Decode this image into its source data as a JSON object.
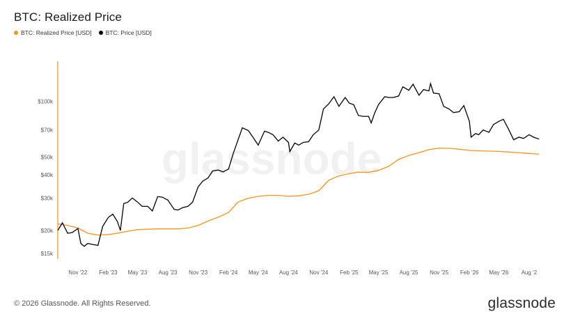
{
  "header": {
    "title": "BTC: Realized Price"
  },
  "watermark": "glassnode",
  "footer": {
    "copyright": "© 2026 Glassnode. All Rights Reserved.",
    "logo": "glassnode"
  },
  "colors": {
    "realized": "#f7931a",
    "price": "#000000",
    "axis": "#f7931a"
  },
  "chart_data": {
    "type": "line",
    "title": "BTC: Realized Price",
    "xlabel": "",
    "ylabel": "",
    "y_scale": "log",
    "ylim": [
      14000,
      165000
    ],
    "xlim": [
      "2022-09-01",
      "2026-08-31"
    ],
    "y_ticks": [
      15000,
      20000,
      30000,
      40000,
      50000,
      70000,
      100000
    ],
    "y_tick_labels": [
      "$15k",
      "$20k",
      "$30k",
      "$40k",
      "$50k",
      "$70k",
      "$100k"
    ],
    "x_ticks": [
      "2022-11-01",
      "2023-02-01",
      "2023-05-01",
      "2023-08-01",
      "2023-11-01",
      "2024-02-01",
      "2024-05-01",
      "2024-08-01",
      "2024-11-01",
      "2025-02-01",
      "2025-05-01",
      "2025-08-01",
      "2025-11-01",
      "2026-02-01",
      "2026-05-01",
      "2026-08-01"
    ],
    "x_tick_labels": [
      "Nov '22",
      "Feb '23",
      "May '23",
      "Aug '23",
      "Nov '23",
      "Feb '24",
      "May '24",
      "Aug '24",
      "Nov '24",
      "Feb '25",
      "May '25",
      "Aug '25",
      "Nov '25",
      "Feb '26",
      "May '26",
      "Aug '2"
    ],
    "legend": "top-left",
    "grid": false,
    "series": [
      {
        "name": "BTC: Realized Price [USD]",
        "color": "#f7931a",
        "x": [
          "2022-09-01",
          "2022-10-01",
          "2022-11-01",
          "2022-12-01",
          "2023-01-01",
          "2023-02-01",
          "2023-03-01",
          "2023-04-01",
          "2023-05-01",
          "2023-06-01",
          "2023-07-01",
          "2023-08-01",
          "2023-09-01",
          "2023-10-01",
          "2023-11-01",
          "2023-12-01",
          "2024-01-01",
          "2024-02-01",
          "2024-03-01",
          "2024-04-01",
          "2024-05-01",
          "2024-06-01",
          "2024-07-01",
          "2024-08-01",
          "2024-09-01",
          "2024-10-01",
          "2024-11-01",
          "2024-12-01",
          "2025-01-01",
          "2025-02-01",
          "2025-03-01",
          "2025-04-01",
          "2025-05-01",
          "2025-06-01",
          "2025-07-01",
          "2025-08-01",
          "2025-09-01",
          "2025-10-01",
          "2025-11-01",
          "2025-12-01",
          "2026-01-01",
          "2026-02-01",
          "2026-03-01",
          "2026-04-01",
          "2026-05-01",
          "2026-06-01",
          "2026-07-01",
          "2026-08-01",
          "2026-08-31"
        ],
        "y": [
          21700,
          21300,
          20600,
          19300,
          18900,
          19000,
          19300,
          19800,
          20200,
          20300,
          20400,
          20400,
          20400,
          20600,
          21300,
          22500,
          23600,
          25000,
          28500,
          29900,
          30600,
          31000,
          31000,
          30600,
          30800,
          31400,
          32800,
          37400,
          39500,
          40600,
          41400,
          41300,
          42300,
          44500,
          48500,
          51000,
          52800,
          54800,
          55800,
          55700,
          55100,
          54300,
          54000,
          53800,
          53600,
          53200,
          52700,
          52300,
          51800
        ]
      },
      {
        "name": "BTC: Price [USD]",
        "color": "#000000",
        "x": [
          "2022-09-01",
          "2022-09-15",
          "2022-10-01",
          "2022-10-15",
          "2022-11-01",
          "2022-11-10",
          "2022-11-20",
          "2022-12-01",
          "2022-12-15",
          "2023-01-01",
          "2023-01-15",
          "2023-02-01",
          "2023-02-15",
          "2023-03-01",
          "2023-03-10",
          "2023-03-20",
          "2023-04-01",
          "2023-04-15",
          "2023-05-01",
          "2023-05-15",
          "2023-06-01",
          "2023-06-15",
          "2023-07-01",
          "2023-07-15",
          "2023-08-01",
          "2023-08-20",
          "2023-09-01",
          "2023-09-15",
          "2023-10-01",
          "2023-10-15",
          "2023-11-01",
          "2023-11-15",
          "2023-12-01",
          "2023-12-15",
          "2024-01-01",
          "2024-01-15",
          "2024-02-01",
          "2024-02-15",
          "2024-03-01",
          "2024-03-14",
          "2024-04-01",
          "2024-04-15",
          "2024-05-01",
          "2024-05-20",
          "2024-06-01",
          "2024-06-15",
          "2024-07-01",
          "2024-07-15",
          "2024-08-01",
          "2024-08-05",
          "2024-08-20",
          "2024-09-01",
          "2024-09-15",
          "2024-10-01",
          "2024-10-15",
          "2024-11-01",
          "2024-11-15",
          "2024-12-01",
          "2024-12-17",
          "2025-01-01",
          "2025-01-20",
          "2025-02-01",
          "2025-02-15",
          "2025-03-01",
          "2025-03-15",
          "2025-04-01",
          "2025-04-09",
          "2025-04-20",
          "2025-05-01",
          "2025-05-20",
          "2025-06-01",
          "2025-06-15",
          "2025-07-01",
          "2025-07-14",
          "2025-08-01",
          "2025-08-14",
          "2025-09-01",
          "2025-09-15",
          "2025-10-01",
          "2025-10-06",
          "2025-10-15",
          "2025-11-01",
          "2025-11-15",
          "2025-12-01",
          "2025-12-15",
          "2026-01-01",
          "2026-01-15",
          "2026-02-01",
          "2026-02-06",
          "2026-02-20",
          "2026-03-01",
          "2026-03-15",
          "2026-04-01",
          "2026-04-15",
          "2026-05-01",
          "2026-05-15",
          "2026-06-01",
          "2026-06-15",
          "2026-07-01",
          "2026-07-15",
          "2026-08-01",
          "2026-08-15",
          "2026-08-31"
        ],
        "y": [
          20000,
          22000,
          19300,
          19500,
          20500,
          17000,
          16400,
          17000,
          16800,
          16600,
          21000,
          23500,
          24500,
          22300,
          20000,
          28000,
          28400,
          30000,
          28500,
          27000,
          27000,
          25500,
          30500,
          30300,
          29200,
          26000,
          25800,
          26600,
          27000,
          28500,
          34500,
          37000,
          38500,
          42000,
          42500,
          41500,
          43000,
          52000,
          62000,
          72000,
          69500,
          64000,
          58000,
          69000,
          68000,
          66000,
          61000,
          64000,
          60000,
          53500,
          59500,
          58000,
          60000,
          60500,
          66000,
          70000,
          91000,
          97000,
          106000,
          94000,
          105000,
          98000,
          96000,
          84000,
          83000,
          83000,
          76500,
          87000,
          96000,
          106000,
          105000,
          105000,
          107000,
          120000,
          115000,
          124000,
          108000,
          116000,
          114000,
          125000,
          111000,
          110000,
          94000,
          91000,
          87000,
          88000,
          95000,
          78000,
          64000,
          67000,
          66000,
          70000,
          68000,
          75000,
          78000,
          80000,
          70000,
          62000,
          64000,
          63000,
          66000,
          64000,
          62500
        ]
      }
    ]
  }
}
